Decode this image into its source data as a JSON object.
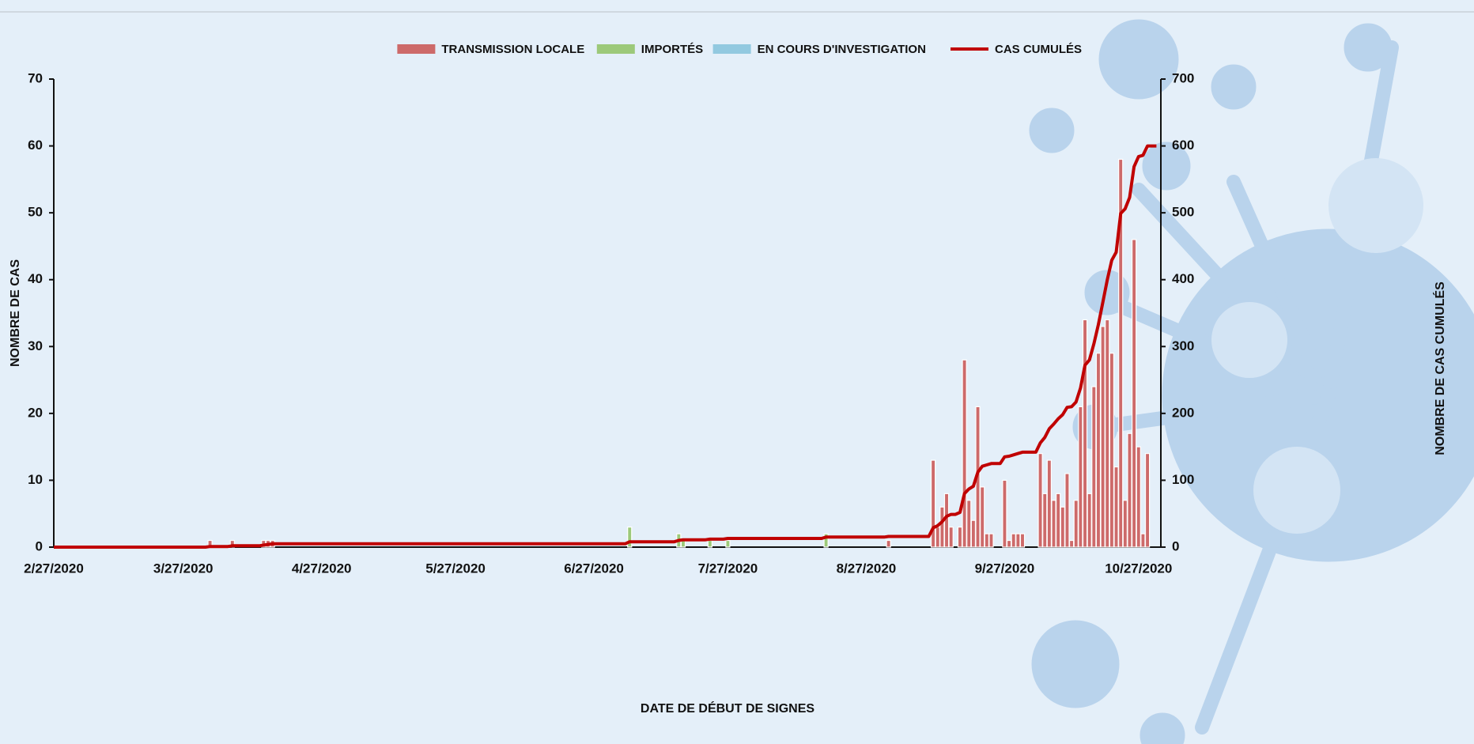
{
  "chart_data": {
    "type": "bar",
    "x_label": "DATE DE DÉBUT DE SIGNES",
    "y_label": "NOMBRE DE CAS",
    "y2_label": "NOMBRE DE CAS CUMULÉS",
    "xlim": [
      "2020-02-27",
      "2020-11-01"
    ],
    "xticks": [
      {
        "value": "2020-02-27",
        "label": "2/27/2020"
      },
      {
        "value": "2020-03-27",
        "label": "3/27/2020"
      },
      {
        "value": "2020-04-27",
        "label": "4/27/2020"
      },
      {
        "value": "2020-05-27",
        "label": "5/27/2020"
      },
      {
        "value": "2020-06-27",
        "label": "6/27/2020"
      },
      {
        "value": "2020-07-27",
        "label": "7/27/2020"
      },
      {
        "value": "2020-08-27",
        "label": "8/27/2020"
      },
      {
        "value": "2020-09-27",
        "label": "9/27/2020"
      },
      {
        "value": "2020-10-27",
        "label": "10/27/2020"
      }
    ],
    "ylim": [
      0,
      70
    ],
    "yticks": [
      0,
      10,
      20,
      30,
      40,
      50,
      60,
      70
    ],
    "y2lim": [
      0,
      700
    ],
    "y2ticks": [
      0,
      100,
      200,
      300,
      400,
      500,
      600,
      700
    ],
    "legend": "top",
    "series": [
      {
        "name": "TRANSMISSION LOCALE",
        "color": "#cd6a6a",
        "x": [
          "2020-04-02",
          "2020-04-07",
          "2020-04-14",
          "2020-04-15",
          "2020-04-16",
          "2020-09-01",
          "2020-09-11",
          "2020-09-12",
          "2020-09-13",
          "2020-09-14",
          "2020-09-15",
          "2020-09-17",
          "2020-09-18",
          "2020-09-19",
          "2020-09-20",
          "2020-09-21",
          "2020-09-22",
          "2020-09-23",
          "2020-09-24",
          "2020-09-27",
          "2020-09-28",
          "2020-09-29",
          "2020-09-30",
          "2020-10-01",
          "2020-10-05",
          "2020-10-06",
          "2020-10-07",
          "2020-10-08",
          "2020-10-09",
          "2020-10-10",
          "2020-10-11",
          "2020-10-12",
          "2020-10-13",
          "2020-10-14",
          "2020-10-15",
          "2020-10-16",
          "2020-10-17",
          "2020-10-18",
          "2020-10-19",
          "2020-10-20",
          "2020-10-21",
          "2020-10-22",
          "2020-10-23",
          "2020-10-24",
          "2020-10-25",
          "2020-10-26",
          "2020-10-27",
          "2020-10-28",
          "2020-10-29"
        ],
        "values": [
          1,
          1,
          1,
          1,
          1,
          1,
          13,
          3,
          6,
          8,
          3,
          3,
          28,
          7,
          4,
          21,
          9,
          2,
          2,
          10,
          1,
          2,
          2,
          2,
          14,
          8,
          13,
          7,
          8,
          6,
          11,
          1,
          7,
          21,
          34,
          8,
          24,
          29,
          33,
          34,
          29,
          12,
          58,
          7,
          17,
          46,
          15,
          2,
          14
        ]
      },
      {
        "name": "IMPORTÉS",
        "color": "#9cc97a",
        "x": [
          "2020-07-05",
          "2020-07-16",
          "2020-07-17",
          "2020-07-23",
          "2020-07-27",
          "2020-08-18"
        ],
        "values": [
          3,
          2,
          1,
          1,
          1,
          2
        ]
      },
      {
        "name": "EN COURS D'INVESTIGATION",
        "color": "#92c9e0",
        "x": [],
        "values": []
      },
      {
        "name": "CAS CUMULÉS",
        "color": "#c00000",
        "axis": "y2",
        "kind": "line",
        "x": [
          "2020-02-27",
          "2020-04-01",
          "2020-04-02",
          "2020-04-06",
          "2020-04-07",
          "2020-04-13",
          "2020-04-14",
          "2020-04-15",
          "2020-04-16",
          "2020-07-04",
          "2020-07-05",
          "2020-07-15",
          "2020-07-16",
          "2020-07-17",
          "2020-07-22",
          "2020-07-23",
          "2020-07-26",
          "2020-07-27",
          "2020-08-17",
          "2020-08-18",
          "2020-08-31",
          "2020-09-01",
          "2020-09-10",
          "2020-09-11",
          "2020-09-12",
          "2020-09-13",
          "2020-09-14",
          "2020-09-15",
          "2020-09-16",
          "2020-09-17",
          "2020-09-18",
          "2020-09-19",
          "2020-09-20",
          "2020-09-21",
          "2020-09-22",
          "2020-09-23",
          "2020-09-24",
          "2020-09-26",
          "2020-09-27",
          "2020-09-28",
          "2020-09-29",
          "2020-09-30",
          "2020-10-01",
          "2020-10-04",
          "2020-10-05",
          "2020-10-06",
          "2020-10-07",
          "2020-10-08",
          "2020-10-09",
          "2020-10-10",
          "2020-10-11",
          "2020-10-12",
          "2020-10-13",
          "2020-10-14",
          "2020-10-15",
          "2020-10-16",
          "2020-10-17",
          "2020-10-18",
          "2020-10-19",
          "2020-10-20",
          "2020-10-21",
          "2020-10-22",
          "2020-10-23",
          "2020-10-24",
          "2020-10-25",
          "2020-10-26",
          "2020-10-27",
          "2020-10-28",
          "2020-10-29",
          "2020-10-31"
        ],
        "values": [
          0,
          0,
          1,
          1,
          2,
          2,
          3,
          4,
          5,
          5,
          8,
          8,
          10,
          11,
          11,
          12,
          12,
          13,
          13,
          15,
          15,
          16,
          16,
          29,
          32,
          38,
          46,
          49,
          49,
          52,
          80,
          87,
          91,
          112,
          121,
          123,
          125,
          125,
          135,
          136,
          138,
          140,
          142,
          142,
          156,
          164,
          177,
          184,
          192,
          198,
          209,
          210,
          217,
          238,
          272,
          280,
          304,
          333,
          366,
          400,
          429,
          441,
          499,
          506,
          523,
          569,
          584,
          586,
          600,
          600
        ]
      }
    ]
  }
}
